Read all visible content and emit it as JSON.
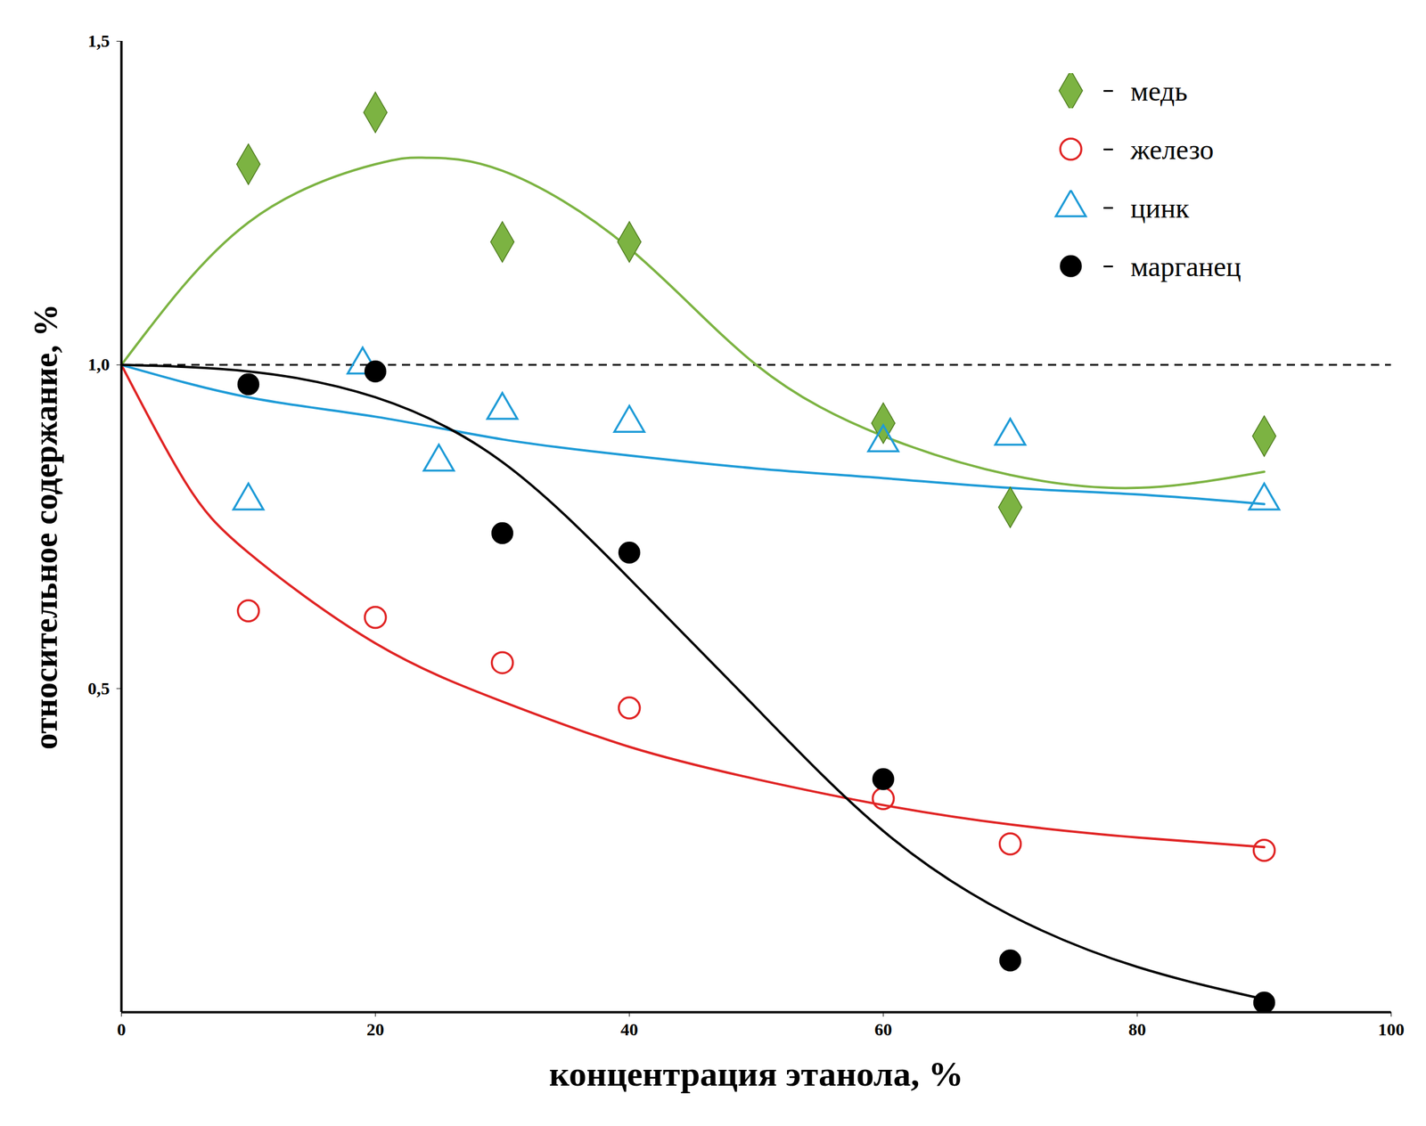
{
  "chart_data": {
    "type": "scatter",
    "x_label": "концентрация этанола, %",
    "y_label": "относительное содержание, %",
    "xlim": [
      0,
      100
    ],
    "xticks": [
      0,
      20,
      40,
      60,
      80,
      100
    ],
    "ylim": [
      0,
      1.5
    ],
    "yticks": [
      {
        "value": 0.5,
        "label": "0,5"
      },
      {
        "value": 1,
        "label": "1,0"
      },
      {
        "value": 1.5,
        "label": "1,5"
      }
    ],
    "reference_y": 1.0,
    "grid": false,
    "legend": "top-right",
    "series": [
      {
        "name": "медь",
        "color": "#7cb342",
        "marker": "diamond",
        "line_style": "solid",
        "x": [
          10,
          20,
          30,
          40,
          60,
          70,
          90
        ],
        "values": [
          1.31,
          1.39,
          1.19,
          1.19,
          0.91,
          0.78,
          0.89
        ],
        "fit": {
          "x": [
            0,
            10,
            20,
            24,
            30,
            40,
            50,
            60,
            70,
            80,
            90
          ],
          "values": [
            1.0,
            1.22,
            1.31,
            1.32,
            1.3,
            1.18,
            1.0,
            0.89,
            0.83,
            0.81,
            0.835
          ]
        }
      },
      {
        "name": "железо",
        "color": "#e02424",
        "marker": "circle-open",
        "line_style": "solid",
        "x": [
          10,
          20,
          30,
          40,
          60,
          70,
          90
        ],
        "values": [
          0.62,
          0.61,
          0.54,
          0.47,
          0.33,
          0.26,
          0.25
        ],
        "fit": {
          "x": [
            0,
            5,
            10,
            20,
            30,
            40,
            50,
            60,
            70,
            80,
            90
          ],
          "values": [
            1.0,
            0.82,
            0.71,
            0.57,
            0.48,
            0.41,
            0.36,
            0.32,
            0.29,
            0.27,
            0.255
          ]
        }
      },
      {
        "name": "цинк",
        "color": "#1e9bd7",
        "marker": "triangle-open",
        "line_style": "solid",
        "x": [
          10,
          19,
          25,
          30,
          40,
          60,
          70,
          90
        ],
        "values": [
          0.79,
          1.0,
          0.85,
          0.93,
          0.91,
          0.88,
          0.89,
          0.79
        ],
        "fit": {
          "x": [
            0,
            10,
            20,
            30,
            40,
            50,
            60,
            70,
            80,
            90
          ],
          "values": [
            1.0,
            0.95,
            0.92,
            0.885,
            0.86,
            0.84,
            0.825,
            0.81,
            0.8,
            0.785
          ]
        }
      },
      {
        "name": "марганец",
        "color": "#000000",
        "marker": "circle",
        "line_style": "solid",
        "x": [
          10,
          20,
          30,
          40,
          60,
          70,
          90
        ],
        "values": [
          0.97,
          0.99,
          0.74,
          0.71,
          0.36,
          0.08,
          0.015
        ],
        "fit": {
          "x": [
            0,
            10,
            20,
            30,
            40,
            50,
            60,
            70,
            80,
            90
          ],
          "values": [
            1.0,
            0.99,
            0.95,
            0.85,
            0.67,
            0.47,
            0.28,
            0.15,
            0.07,
            0.02
          ]
        }
      }
    ]
  }
}
